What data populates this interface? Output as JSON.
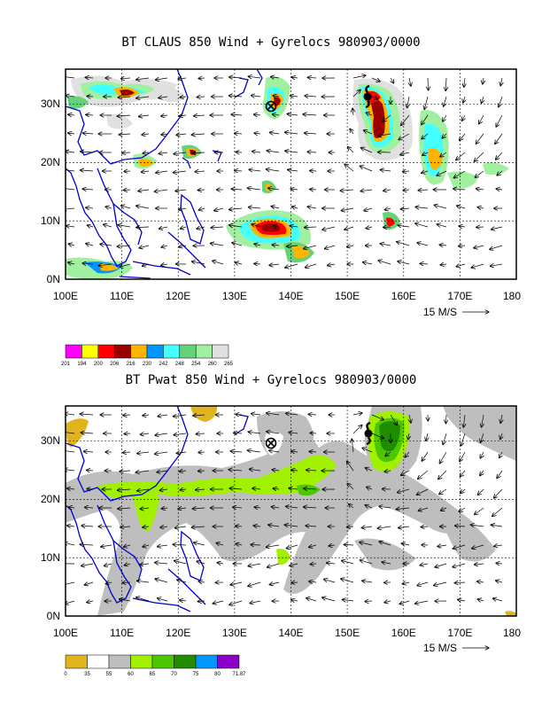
{
  "panels": [
    {
      "id": "claus",
      "title": "BT CLAUS 850 Wind + Gyrelocs 980903/0000",
      "xticks": [
        "100E",
        "110E",
        "120E",
        "130E",
        "140E",
        "150E",
        "160E",
        "170E",
        "180"
      ],
      "yticks": [
        "0N",
        "10N",
        "20N",
        "30N"
      ],
      "scale_label": "15 M/S",
      "colorbar_labels": [
        "201",
        "194",
        "200",
        "206",
        "216",
        "230",
        "242",
        "248",
        "254",
        "260",
        "265"
      ],
      "colorbar_colors": [
        "#ff00ff",
        "#ffff00",
        "#ff0000",
        "#990000",
        "#ffb400",
        "#0096ff",
        "#44ffff",
        "#64d278",
        "#a0f0a0",
        "#e0e0e0"
      ]
    },
    {
      "id": "pwat",
      "title": "BT Pwat 850 Wind + Gyrelocs 980903/0000",
      "xticks": [
        "100E",
        "110E",
        "120E",
        "130E",
        "140E",
        "150E",
        "160E",
        "170E",
        "180"
      ],
      "yticks": [
        "0N",
        "10N",
        "20N",
        "30N"
      ],
      "scale_label": "15 M/S",
      "colorbar_labels": [
        "0",
        "35",
        "55",
        "60",
        "65",
        "70",
        "75",
        "80",
        "71.87"
      ],
      "colorbar_colors": [
        "#e0b41c",
        "#ffffff",
        "#bebebe",
        "#a0f000",
        "#4cc800",
        "#208c00",
        "#0096ff",
        "#8c00c8"
      ]
    }
  ],
  "chart_data": [
    {
      "type": "heatmap",
      "title": "BT CLAUS 850 Wind + Gyrelocs 980903/0000",
      "x_range": [
        100,
        180
      ],
      "y_range": [
        0,
        36
      ],
      "xlabel": "",
      "ylabel": "",
      "gyre_markers": [
        {
          "symbol": "circled-x",
          "lon": 136.5,
          "lat": 29
        },
        {
          "symbol": "typhoon",
          "lon": 154,
          "lat": 31
        }
      ],
      "vector_scale": "15 M/S",
      "colorbar_bounds": [
        201,
        194,
        200,
        206,
        216,
        230,
        242,
        248,
        254,
        260,
        265
      ]
    },
    {
      "type": "heatmap",
      "title": "BT Pwat 850 Wind + Gyrelocs 980903/0000",
      "x_range": [
        100,
        180
      ],
      "y_range": [
        0,
        36
      ],
      "xlabel": "",
      "ylabel": "",
      "gyre_markers": [
        {
          "symbol": "circled-x",
          "lon": 136.5,
          "lat": 29
        },
        {
          "symbol": "typhoon",
          "lon": 154,
          "lat": 31
        }
      ],
      "vector_scale": "15 M/S",
      "colorbar_bounds": [
        0,
        35,
        55,
        60,
        65,
        70,
        75,
        80,
        71.87
      ]
    }
  ]
}
